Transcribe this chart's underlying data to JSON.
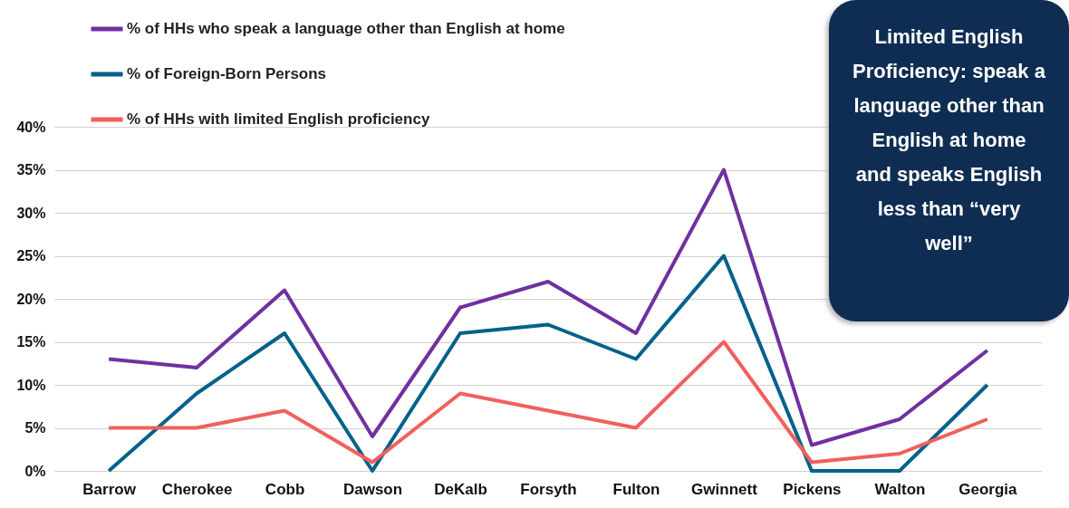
{
  "chart_data": {
    "type": "line",
    "categories": [
      "Barrow",
      "Cherokee",
      "Cobb",
      "Dawson",
      "DeKalb",
      "Forsyth",
      "Fulton",
      "Gwinnett",
      "Pickens",
      "Walton",
      "Georgia"
    ],
    "series": [
      {
        "name": "% of HHs who speak a language other than English at home",
        "color": "#7030a0",
        "values": [
          13,
          12,
          21,
          4,
          19,
          22,
          16,
          35,
          3,
          6,
          14
        ]
      },
      {
        "name": "% of Foreign-Born Persons",
        "color": "#00618a",
        "values": [
          0,
          9,
          16,
          0,
          16,
          17,
          13,
          25,
          0,
          0,
          10
        ]
      },
      {
        "name": "% of HHs with limited English proficiency",
        "color": "#f0605d",
        "values": [
          5,
          5,
          7,
          1,
          9,
          7,
          5,
          15,
          1,
          2,
          6
        ]
      }
    ],
    "ylim": [
      0,
      40
    ],
    "yticks": [
      {
        "value": 0,
        "label": "0%"
      },
      {
        "value": 5,
        "label": "5%"
      },
      {
        "value": 10,
        "label": "10%"
      },
      {
        "value": 15,
        "label": "15%"
      },
      {
        "value": 20,
        "label": "20%"
      },
      {
        "value": 25,
        "label": "25%"
      },
      {
        "value": 30,
        "label": "30%"
      },
      {
        "value": 35,
        "label": "35%"
      },
      {
        "value": 40,
        "label": "40%"
      }
    ],
    "grid": "y",
    "legend": "top left",
    "marker": "none",
    "line_style": "solid",
    "annotations": [
      "Limited English Proficiency: speak a language other than English at home and speaks English less than “very well”"
    ]
  }
}
